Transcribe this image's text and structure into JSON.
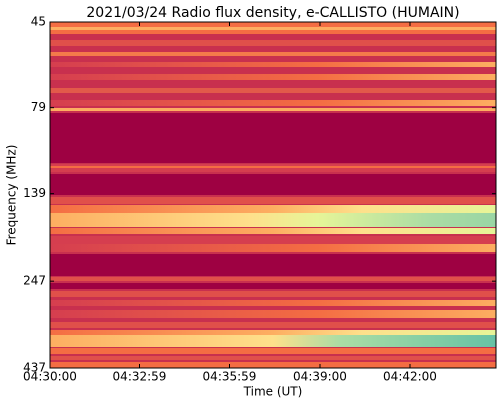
{
  "chart_data": {
    "type": "spectrogram",
    "title": "2021/03/24  Radio flux density, e-CALLISTO (HUMAIN)",
    "xlabel": "Time (UT)",
    "ylabel": "Frequency (MHz)",
    "xlim": [
      16200,
      17092
    ],
    "xticks": [
      {
        "value": 16200,
        "label": "04:30:00"
      },
      {
        "value": 16379,
        "label": "04:32:59"
      },
      {
        "value": 16559,
        "label": "04:35:59"
      },
      {
        "value": 16740,
        "label": "04:39:00"
      },
      {
        "value": 16920,
        "label": "04:42:00"
      }
    ],
    "ylim": [
      437,
      45
    ],
    "ylog": true,
    "yticks": [
      45,
      79,
      139,
      247,
      437
    ]
  }
}
